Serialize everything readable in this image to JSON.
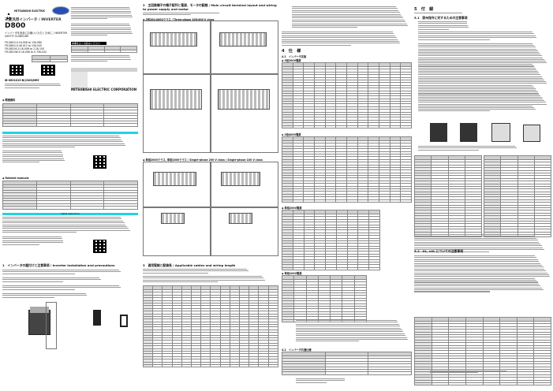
{
  "cover": {
    "brand": "MITSUBISHI ELECTRIC",
    "series_title": "三菱汎用インバータ / INVERTER",
    "model": "D800",
    "subtitle": "インバータを安全にお使いいただくために / INVERTER SAFETY GUIDELINE",
    "models": [
      "FR-D820-0.1K-008 to 15K-080",
      "FR-D840-0.4K-012 to 15K-045",
      "FR-D820S-0.1K-008 to 2.2K-100",
      "FR-D810W-0.1K-008 to 0.75K-042"
    ],
    "doc_number": "IB-0601019-B(2306)MEE",
    "corporation": "MITSUBISHI ELECTRIC CORPORATION",
    "black_bar": "本書をよくお読みください",
    "colors": {
      "safety_bar": "#22d3e0",
      "text": "#111111"
    }
  },
  "section1": {
    "title": "1　インバータの据付けと注意事項 / Inverter installation and precautions"
  },
  "section2": {
    "title": "2　主回路端子の端子配列と電源、モータの配線 / Main circuit terminal layout and wiring to power supply and motor",
    "three_phase": "◆ 3相200/400Vクラス / Three-phase 200/400 V class",
    "single_phase": "◆ 単相200Vクラス, 単相100Vクラス / Single-phase 200 V class / Single-phase 100 V class"
  },
  "section3": {
    "title": "3　適用電線と配線長 / Applicable cables and wiring length"
  },
  "section4": {
    "title": "4　仕　様",
    "s41": "4.1　インバータ定格",
    "t200": "◆ 3相200V電源",
    "t400": "◆ 3相400V電源",
    "s200": "◆ 単相200V電源",
    "s100": "◆ 単相100V電源",
    "s42": "4.2　インバータ共通仕様"
  },
  "section5": {
    "title": "5　付　録",
    "s51": "5.1　欧州指令に対するための注意事項",
    "s52": "5.2　UL, cUL についての注意事項"
  },
  "manuals_heading": "◆ Related manuals",
  "related_heading": "◆ 関連資料",
  "safety_bar": "Safety instructions"
}
